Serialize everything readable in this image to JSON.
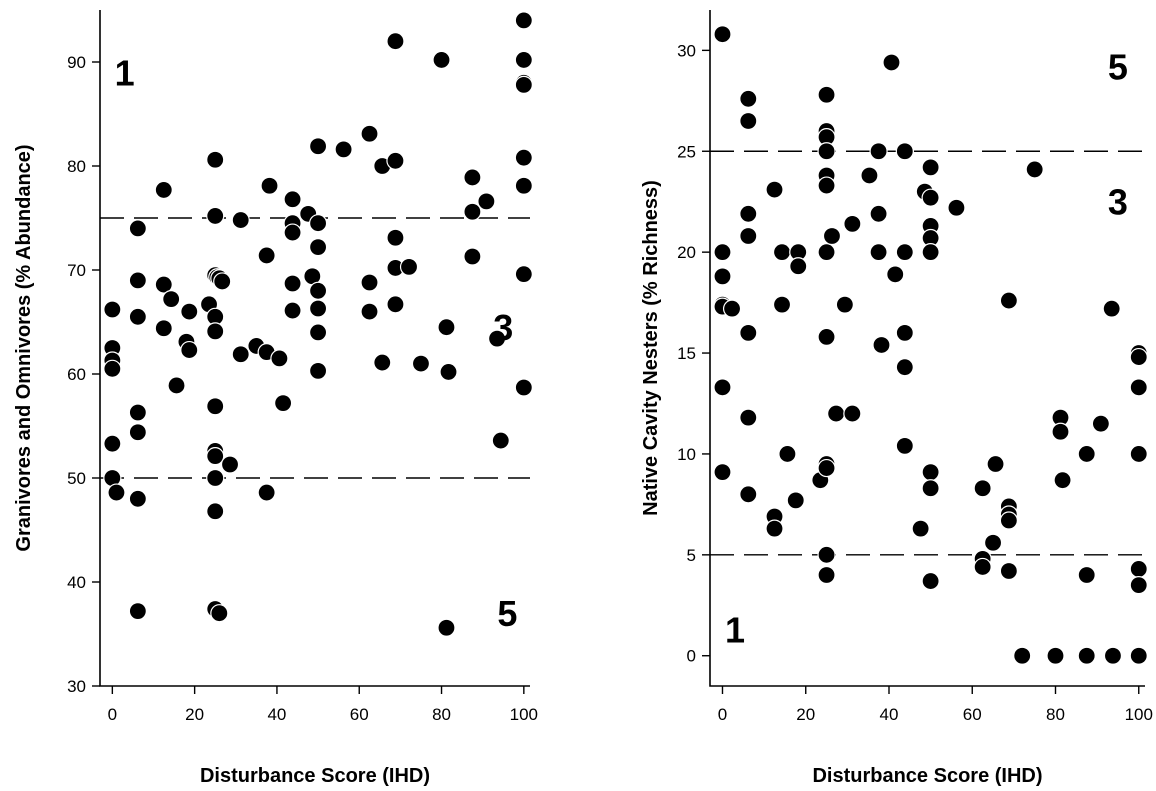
{
  "chart_data": [
    {
      "type": "scatter",
      "xlabel": "Disturbance Score (IHD)",
      "ylabel": "Granivores and Omnivores (% Abundance)",
      "xlim": [
        -3,
        101.5
      ],
      "ylim": [
        30,
        95
      ],
      "xticks": [
        0,
        20,
        40,
        60,
        80,
        100
      ],
      "yticks": [
        30,
        40,
        50,
        60,
        70,
        80,
        90
      ],
      "reference_lines": [
        75,
        50
      ],
      "zone_labels": [
        {
          "text": "1",
          "x": 3,
          "y": 89
        },
        {
          "text": "3",
          "x": 95,
          "y": 64.5
        },
        {
          "text": "5",
          "x": 96,
          "y": 37
        }
      ],
      "points": [
        [
          0,
          66.2
        ],
        [
          0,
          62.5
        ],
        [
          0,
          61.3
        ],
        [
          0,
          60.5
        ],
        [
          0,
          53.3
        ],
        [
          0,
          50
        ],
        [
          1,
          48.6
        ],
        [
          6.2,
          74
        ],
        [
          6.2,
          69
        ],
        [
          6.2,
          65.5
        ],
        [
          6.2,
          56.3
        ],
        [
          6.2,
          54.4
        ],
        [
          6.2,
          48
        ],
        [
          6.2,
          37.2
        ],
        [
          12.5,
          77.7
        ],
        [
          12.5,
          68.6
        ],
        [
          12.5,
          64.4
        ],
        [
          14.3,
          67.2
        ],
        [
          15.6,
          58.9
        ],
        [
          18,
          63.1
        ],
        [
          18.7,
          62.3
        ],
        [
          18.7,
          66
        ],
        [
          23.5,
          66.7
        ],
        [
          25,
          80.6
        ],
        [
          25,
          75.2
        ],
        [
          25,
          69.5
        ],
        [
          25,
          65.5
        ],
        [
          25,
          64.1
        ],
        [
          25,
          56.9
        ],
        [
          25,
          52.6
        ],
        [
          25,
          52.1
        ],
        [
          25,
          50
        ],
        [
          25,
          46.8
        ],
        [
          25,
          37.4
        ],
        [
          25.5,
          69.3
        ],
        [
          26,
          69.2
        ],
        [
          26,
          37
        ],
        [
          26.7,
          68.9
        ],
        [
          28.6,
          51.3
        ],
        [
          31.2,
          61.9
        ],
        [
          31.2,
          74.8
        ],
        [
          35,
          62.7
        ],
        [
          37.5,
          62.1
        ],
        [
          37.5,
          48.6
        ],
        [
          37.5,
          71.4
        ],
        [
          38.2,
          78.1
        ],
        [
          40.6,
          61.5
        ],
        [
          41.5,
          57.2
        ],
        [
          43.8,
          76.8
        ],
        [
          43.8,
          74.5
        ],
        [
          43.8,
          73.6
        ],
        [
          43.8,
          68.7
        ],
        [
          43.8,
          66.1
        ],
        [
          47.6,
          75.4
        ],
        [
          48.6,
          69.4
        ],
        [
          50,
          81.9
        ],
        [
          50,
          74.5
        ],
        [
          50,
          72.2
        ],
        [
          50,
          68
        ],
        [
          50,
          66.3
        ],
        [
          50,
          64.1
        ],
        [
          50,
          64
        ],
        [
          50,
          60.3
        ],
        [
          56.2,
          81.6
        ],
        [
          62.5,
          83.1
        ],
        [
          62.5,
          68.8
        ],
        [
          62.5,
          66
        ],
        [
          65.6,
          80
        ],
        [
          65.6,
          61.1
        ],
        [
          68.8,
          92
        ],
        [
          68.8,
          80.5
        ],
        [
          68.8,
          73.1
        ],
        [
          68.8,
          70.2
        ],
        [
          68.8,
          66.7
        ],
        [
          72.1,
          70.3
        ],
        [
          75,
          61
        ],
        [
          80,
          90.2
        ],
        [
          81.2,
          64.5
        ],
        [
          81.7,
          60.2
        ],
        [
          81.2,
          35.6
        ],
        [
          87.5,
          78.9
        ],
        [
          87.5,
          75.6
        ],
        [
          87.5,
          71.3
        ],
        [
          90.9,
          76.6
        ],
        [
          93.5,
          63.4
        ],
        [
          94.4,
          53.6
        ],
        [
          100,
          94
        ],
        [
          100,
          90.2
        ],
        [
          100,
          88
        ],
        [
          100,
          87.8
        ],
        [
          100,
          80.8
        ],
        [
          100,
          78.1
        ],
        [
          100,
          69.6
        ],
        [
          100,
          58.7
        ]
      ]
    },
    {
      "type": "scatter",
      "xlabel": "Disturbance Score (IHD)",
      "ylabel": "Native Cavity Nesters (% Richness)",
      "xlim": [
        -3,
        101.5
      ],
      "ylim": [
        -1.5,
        32
      ],
      "xticks": [
        0,
        20,
        40,
        60,
        80,
        100
      ],
      "yticks": [
        0,
        5,
        10,
        15,
        20,
        25,
        30
      ],
      "reference_lines": [
        25,
        5
      ],
      "zone_labels": [
        {
          "text": "5",
          "x": 95,
          "y": 29.2
        },
        {
          "text": "3",
          "x": 95,
          "y": 22.5
        },
        {
          "text": "1",
          "x": 3,
          "y": 1.3
        }
      ],
      "points": [
        [
          0,
          30.8
        ],
        [
          0,
          20
        ],
        [
          0,
          18.8
        ],
        [
          0,
          17.4
        ],
        [
          0,
          17.3
        ],
        [
          0,
          13.3
        ],
        [
          0,
          9.1
        ],
        [
          2.3,
          17.2
        ],
        [
          6.2,
          27.6
        ],
        [
          6.2,
          26.5
        ],
        [
          6.2,
          21.9
        ],
        [
          6.2,
          20.8
        ],
        [
          6.2,
          16
        ],
        [
          6.2,
          11.8
        ],
        [
          6.2,
          8
        ],
        [
          12.5,
          23.1
        ],
        [
          12.5,
          6.9
        ],
        [
          12.5,
          6.3
        ],
        [
          14.3,
          20
        ],
        [
          14.3,
          17.4
        ],
        [
          15.6,
          10
        ],
        [
          17.6,
          7.7
        ],
        [
          18.2,
          20
        ],
        [
          18.2,
          19.3
        ],
        [
          23.5,
          8.7
        ],
        [
          25,
          27.8
        ],
        [
          25,
          26
        ],
        [
          25,
          25.7
        ],
        [
          25,
          25
        ],
        [
          25,
          23.8
        ],
        [
          25,
          23.3
        ],
        [
          25,
          20
        ],
        [
          25,
          15.8
        ],
        [
          25,
          9.5
        ],
        [
          25,
          9.3
        ],
        [
          25,
          5
        ],
        [
          25,
          4
        ],
        [
          26.3,
          20.8
        ],
        [
          27.3,
          12
        ],
        [
          29.4,
          17.4
        ],
        [
          31.2,
          12
        ],
        [
          31.2,
          21.4
        ],
        [
          35.3,
          23.8
        ],
        [
          37.5,
          25
        ],
        [
          37.5,
          21.9
        ],
        [
          37.5,
          20
        ],
        [
          38.2,
          15.4
        ],
        [
          40.6,
          29.4
        ],
        [
          41.5,
          18.9
        ],
        [
          43.8,
          25
        ],
        [
          43.8,
          20
        ],
        [
          43.8,
          16
        ],
        [
          43.8,
          14.3
        ],
        [
          43.8,
          10.4
        ],
        [
          47.6,
          6.3
        ],
        [
          48.6,
          23
        ],
        [
          50,
          24.2
        ],
        [
          50,
          22.7
        ],
        [
          50,
          21.3
        ],
        [
          50,
          20.7
        ],
        [
          50,
          20
        ],
        [
          50,
          9.1
        ],
        [
          50,
          8.3
        ],
        [
          50,
          3.7
        ],
        [
          56.2,
          22.2
        ],
        [
          62.5,
          8.3
        ],
        [
          62.5,
          4.8
        ],
        [
          62.5,
          4.4
        ],
        [
          65,
          5.6
        ],
        [
          65.6,
          9.5
        ],
        [
          68.8,
          17.6
        ],
        [
          68.8,
          7.4
        ],
        [
          68.8,
          7
        ],
        [
          68.8,
          6.7
        ],
        [
          68.8,
          4.2
        ],
        [
          72,
          0
        ],
        [
          75,
          24.1
        ],
        [
          80,
          0
        ],
        [
          81.2,
          11.8
        ],
        [
          81.2,
          11.1
        ],
        [
          81.7,
          8.7
        ],
        [
          87.5,
          10
        ],
        [
          87.5,
          4
        ],
        [
          87.5,
          0
        ],
        [
          90.9,
          11.5
        ],
        [
          93.5,
          17.2
        ],
        [
          93.8,
          0
        ],
        [
          100,
          15
        ],
        [
          100,
          14.8
        ],
        [
          100,
          13.3
        ],
        [
          100,
          10
        ],
        [
          100,
          4.3
        ],
        [
          100,
          3.5
        ],
        [
          100,
          0
        ]
      ]
    }
  ]
}
